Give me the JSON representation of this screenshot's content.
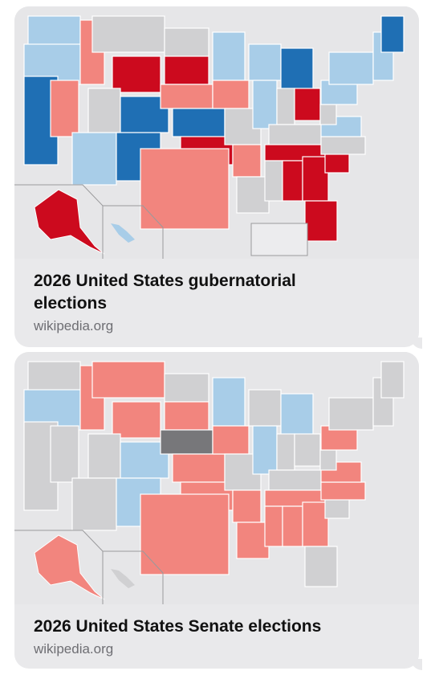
{
  "cards": [
    {
      "title": "2026 United States gubernatorial elections",
      "domain": "wikipedia.org"
    },
    {
      "title": "2026 United States Senate elections",
      "domain": "wikipedia.org"
    }
  ]
}
